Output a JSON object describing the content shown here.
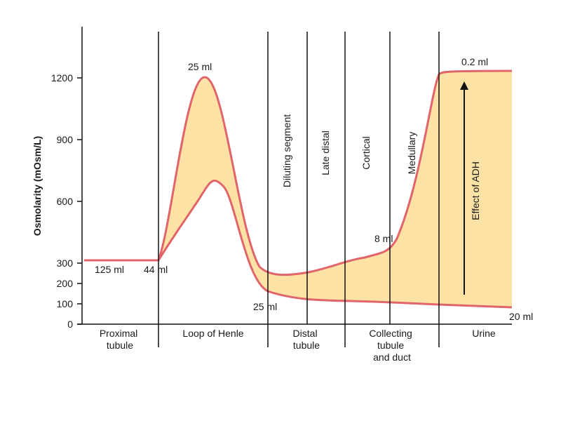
{
  "y_axis": {
    "title": "Osmolarity  (mOsm/L)",
    "ticks": [
      "0",
      "100",
      "200",
      "300",
      "600",
      "900",
      "1200"
    ]
  },
  "regions": {
    "proximal": [
      "Proximal",
      "tubule"
    ],
    "loop": [
      "Loop of Henle"
    ],
    "distal": [
      "Distal",
      "tubule"
    ],
    "collecting": [
      "Collecting",
      "tubule",
      "and duct"
    ],
    "urine": [
      "Urine"
    ]
  },
  "segments": {
    "diluting": "Diluting segment",
    "late_distal": "Late distal",
    "cortical": "Cortical",
    "medullary": "Medullary"
  },
  "volumes": {
    "v125": "125 ml",
    "v44": "44 ml",
    "v25_top": "25 ml",
    "v25_bottom": "25 ml",
    "v8": "8 ml",
    "v02": "0.2 ml",
    "v20": "20 ml"
  },
  "adh_label": "Effect of ADH",
  "colors": {
    "curve": "#e0646a",
    "fill": "#fde2a6",
    "axis": "#111111"
  }
}
